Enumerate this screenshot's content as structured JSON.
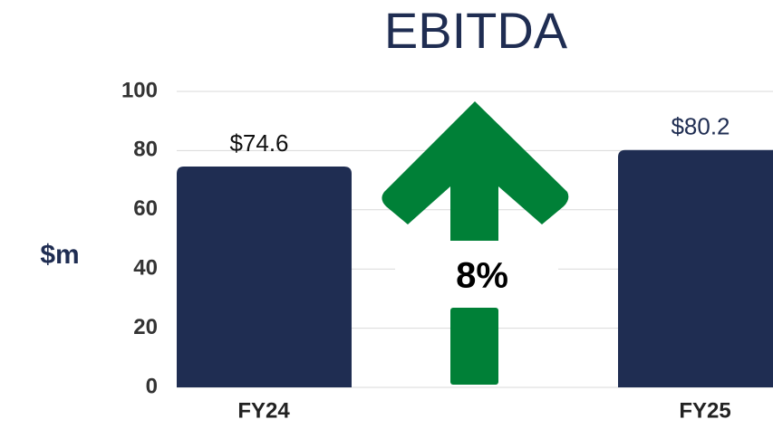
{
  "chart_data": {
    "type": "bar",
    "title": "EBITDA",
    "y_label": "$m",
    "categories": [
      "FY24",
      "FY25"
    ],
    "values": [
      74.6,
      80.2
    ],
    "value_labels": [
      "$74.6",
      "$80.2"
    ],
    "value_label_colors": [
      "#111111",
      "#1f2d52"
    ],
    "color": "#1f2d52",
    "ylim": [
      0,
      100
    ],
    "yticks": [
      0,
      20,
      40,
      60,
      80,
      100
    ],
    "grid": true,
    "annotation": "8%",
    "annotation_color": "#008037"
  }
}
